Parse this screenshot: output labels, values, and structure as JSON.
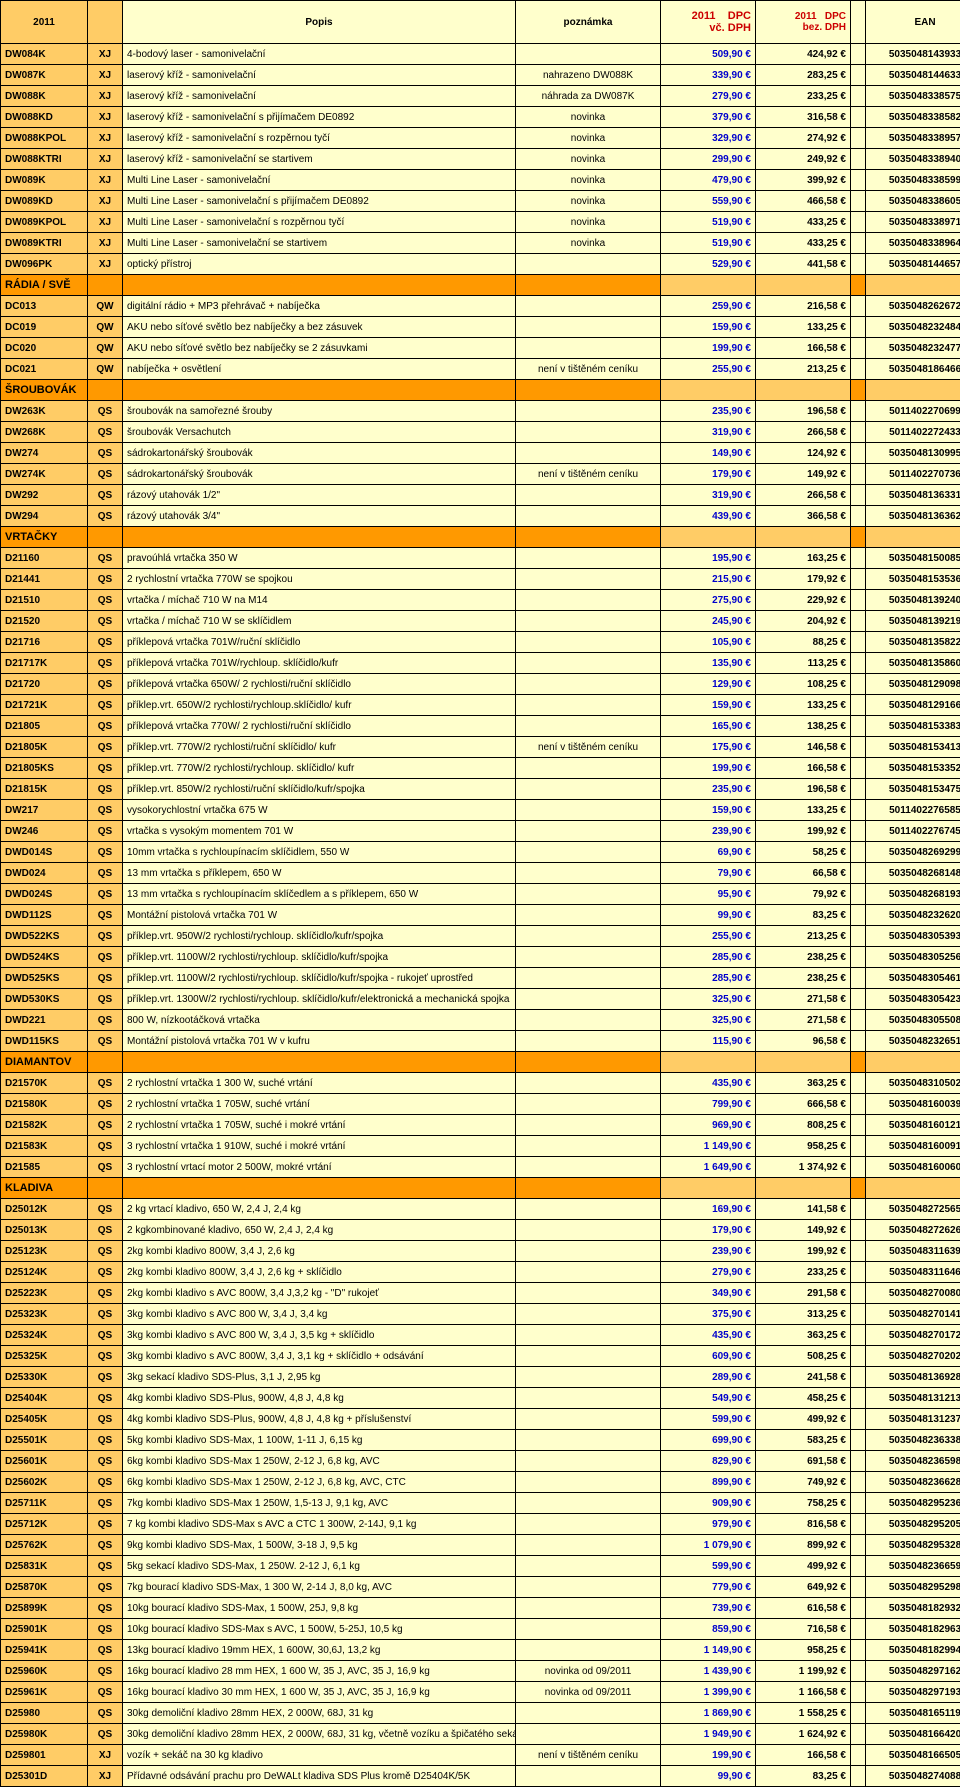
{
  "headers": [
    "2011",
    "",
    "Popis",
    "poznámka",
    "2011 DPC vč. DPH",
    "2011 DPC bez. DPH",
    "",
    "EAN"
  ],
  "col_classes": [
    "c0",
    "c1",
    "c2",
    "c3",
    "c4",
    "c5",
    "c6",
    "c7"
  ],
  "th_classes": [
    "",
    "",
    "",
    "",
    "p1",
    "p2",
    "",
    ""
  ],
  "rows": [
    [
      "DW084K",
      "XJ",
      "4-bodový laser - samonivelační",
      "",
      "509,90 €",
      "424,92 €",
      "",
      "5035048143933"
    ],
    [
      "DW087K",
      "XJ",
      "laserový kříž - samonivelační",
      "nahrazeno DW088K",
      "339,90 €",
      "283,25 €",
      "",
      "5035048144633"
    ],
    [
      "DW088K",
      "XJ",
      "laserový kříž - samonivelační",
      "náhrada za DW087K",
      "279,90 €",
      "233,25 €",
      "",
      "5035048338575"
    ],
    [
      "DW088KD",
      "XJ",
      "laserový kříž - samonivelační s přijímačem DE0892",
      "novinka",
      "379,90 €",
      "316,58 €",
      "",
      "5035048338582"
    ],
    [
      "DW088KPOL",
      "XJ",
      "laserový kříž - samonivelační s rozpěrnou tyčí",
      "novinka",
      "329,90 €",
      "274,92 €",
      "",
      "5035048338957"
    ],
    [
      "DW088KTRI",
      "XJ",
      "laserový kříž - samonivelační se startivem",
      "novinka",
      "299,90 €",
      "249,92 €",
      "",
      "5035048338940"
    ],
    [
      "DW089K",
      "XJ",
      "Multi Line Laser - samonivelační",
      "novinka",
      "479,90 €",
      "399,92 €",
      "",
      "5035048338599"
    ],
    [
      "DW089KD",
      "XJ",
      "Multi Line Laser - samonivelační s přijímačem DE0892",
      "novinka",
      "559,90 €",
      "466,58 €",
      "",
      "5035048338605"
    ],
    [
      "DW089KPOL",
      "XJ",
      "Multi Line Laser - samonivelační s rozpěrnou tyčí",
      "novinka",
      "519,90 €",
      "433,25 €",
      "",
      "5035048338971"
    ],
    [
      "DW089KTRI",
      "XJ",
      "Multi Line Laser - samonivelační se startivem",
      "novinka",
      "519,90 €",
      "433,25 €",
      "",
      "5035048338964"
    ],
    [
      "DW096PK",
      "XJ",
      "optický přístroj",
      "",
      "529,90 €",
      "441,58 €",
      "",
      "5035048144657"
    ],
    {
      "section": "RÁDIA / SVĚ"
    },
    [
      "DC013",
      "QW",
      "digitální rádio + MP3 přehrávač + nabíječka",
      "",
      "259,90 €",
      "216,58 €",
      "",
      "5035048262672"
    ],
    [
      "DC019",
      "QW",
      "AKU nebo síťové světlo bez nabíječky a  bez zásuvek",
      "",
      "159,90 €",
      "133,25 €",
      "",
      "5035048232484"
    ],
    [
      "DC020",
      "QW",
      "AKU nebo síťové světlo bez nabíječky se 2 zásuvkami",
      "",
      "199,90 €",
      "166,58 €",
      "",
      "5035048232477"
    ],
    [
      "DC021",
      "QW",
      "nabíječka + osvětlení",
      "není v tištěném ceníku",
      "255,90 €",
      "213,25 €",
      "",
      "5035048186466"
    ],
    {
      "section": "ŠROUBOVÁK"
    },
    [
      "DW263K",
      "QS",
      "šroubovák na samořezné šrouby",
      "",
      "235,90 €",
      "196,58 €",
      "",
      "5011402270699"
    ],
    [
      "DW268K",
      "QS",
      "šroubovák Versachutch",
      "",
      "319,90 €",
      "266,58 €",
      "",
      "5011402272433"
    ],
    [
      "DW274",
      "QS",
      "sádrokartonářský šroubovák",
      "",
      "149,90 €",
      "124,92 €",
      "",
      "5035048130995"
    ],
    [
      "DW274K",
      "QS",
      "sádrokartonářský šroubovák",
      "není v tištěném ceníku",
      "179,90 €",
      "149,92 €",
      "",
      "5011402270736"
    ],
    [
      "DW292",
      "QS",
      "rázový utahovák 1/2\"",
      "",
      "319,90 €",
      "266,58 €",
      "",
      "5035048136331"
    ],
    [
      "DW294",
      "QS",
      "rázový utahovák 3/4\"",
      "",
      "439,90 €",
      "366,58 €",
      "",
      "5035048136362"
    ],
    {
      "section": "VRTAČKY"
    },
    [
      "D21160",
      "QS",
      "pravoúhlá vrtačka 350 W",
      "",
      "195,90 €",
      "163,25 €",
      "",
      "5035048150085"
    ],
    [
      "D21441",
      "QS",
      "2 rychlostní vrtačka 770W se spojkou",
      "",
      "215,90 €",
      "179,92 €",
      "",
      "5035048153536"
    ],
    [
      "D21510",
      "QS",
      "vrtačka / míchač 710 W na M14",
      "",
      "275,90 €",
      "229,92 €",
      "",
      "5035048139240"
    ],
    [
      "D21520",
      "QS",
      "vrtačka / míchač 710 W se sklíčidlem",
      "",
      "245,90 €",
      "204,92 €",
      "",
      "5035048139219"
    ],
    [
      "D21716",
      "QS",
      "příklepová vrtačka 701W/ruční sklíčidlo",
      "",
      "105,90 €",
      "88,25 €",
      "",
      "5035048135822"
    ],
    [
      "D21717K",
      "QS",
      "příklepová vrtačka 701W/rychloup. sklíčidlo/kufr",
      "",
      "135,90 €",
      "113,25 €",
      "",
      "5035048135860"
    ],
    [
      "D21720",
      "QS",
      "příklepová vrtačka 650W/ 2 rychlosti/ruční sklíčidlo",
      "",
      "129,90 €",
      "108,25 €",
      "",
      "5035048129098"
    ],
    [
      "D21721K",
      "QS",
      "příklep.vrt. 650W/2 rychlosti/rychloup.sklíčidlo/ kufr",
      "",
      "159,90 €",
      "133,25 €",
      "",
      "5035048129166"
    ],
    [
      "D21805",
      "QS",
      "příklepová vrtačka 770W/ 2 rychlosti/ruční sklíčidlo",
      "",
      "165,90 €",
      "138,25 €",
      "",
      "5035048153383"
    ],
    [
      "D21805K",
      "QS",
      "příklep.vrt. 770W/2 rychlosti/ruční sklíčidlo/ kufr",
      "není v tištěném ceníku",
      "175,90 €",
      "146,58 €",
      "",
      "5035048153413"
    ],
    [
      "D21805KS",
      "QS",
      "příklep.vrt. 770W/2 rychlosti/rychloup. sklíčidlo/ kufr",
      "",
      "199,90 €",
      "166,58 €",
      "",
      "5035048153352"
    ],
    [
      "D21815K",
      "QS",
      "příklep.vrt. 850W/2 rychlosti/ruční sklíčidlo/kufr/spojka",
      "",
      "235,90 €",
      "196,58 €",
      "",
      "5035048153475"
    ],
    [
      "DW217",
      "QS",
      "vysokorychlostní vrtačka 675 W",
      "",
      "159,90 €",
      "133,25 €",
      "",
      "5011402276585"
    ],
    [
      "DW246",
      "QS",
      "vrtačka s vysokým momentem 701 W",
      "",
      "239,90 €",
      "199,92 €",
      "",
      "5011402276745"
    ],
    [
      "DWD014S",
      "QS",
      "10mm vrtačka s rychloupínacím sklíčidlem, 550 W",
      "",
      "69,90 €",
      "58,25 €",
      "",
      "5035048269299"
    ],
    [
      "DWD024",
      "QS",
      "13 mm vrtačka s příklepem, 650 W",
      "",
      "79,90 €",
      "66,58 €",
      "",
      "5035048268148"
    ],
    [
      "DWD024S",
      "QS",
      "13 mm vrtačka s rychloupínacím sklíčedlem a s příklepem, 650 W",
      "",
      "95,90 €",
      "79,92 €",
      "",
      "5035048268193"
    ],
    [
      "DWD112S",
      "QS",
      "Montážní pistolová vrtačka 701 W",
      "",
      "99,90 €",
      "83,25 €",
      "",
      "5035048232620"
    ],
    [
      "DWD522KS",
      "QS",
      "příklep.vrt. 950W/2 rychlosti/rychloup. sklíčidlo/kufr/spojka",
      "",
      "255,90 €",
      "213,25 €",
      "",
      "5035048305393"
    ],
    [
      "DWD524KS",
      "QS",
      "příklep.vrt. 1100W/2 rychlosti/rychloup. sklíčidlo/kufr/spojka",
      "",
      "285,90 €",
      "238,25 €",
      "",
      "5035048305256"
    ],
    [
      "DWD525KS",
      "QS",
      "příklep.vrt. 1100W/2 rychlosti/rychloup. sklíčidlo/kufr/spojka - rukojeť uprostřed",
      "",
      "285,90 €",
      "238,25 €",
      "",
      "5035048305461"
    ],
    [
      "DWD530KS",
      "QS",
      "příklep.vrt. 1300W/2 rychlosti/rychloup. sklíčidlo/kufr/elektronická a mechanická spojka",
      "",
      "325,90 €",
      "271,58 €",
      "",
      "5035048305423"
    ],
    [
      "DWD221",
      "QS",
      "800 W, nízkootáčková vrtačka",
      "",
      "325,90 €",
      "271,58 €",
      "",
      "5035048305508"
    ],
    [
      "DWD115KS",
      "QS",
      "Montážní pistolová vrtačka 701 W v kufru",
      "",
      "115,90 €",
      "96,58 €",
      "",
      "5035048232651"
    ],
    {
      "section": "DIAMANTOV"
    },
    [
      "D21570K",
      "QS",
      "2 rychlostní vrtačka 1 300 W, suché vrtání",
      "",
      "435,90 €",
      "363,25 €",
      "",
      "5035048310502"
    ],
    [
      "D21580K",
      "QS",
      "2 rychlostní vrtačka 1 705W, suché vrtání",
      "",
      "799,90 €",
      "666,58 €",
      "",
      "5035048160039"
    ],
    [
      "D21582K",
      "QS",
      "2 rychlostní vrtačka 1 705W, suché i mokré vrtání",
      "",
      "969,90 €",
      "808,25 €",
      "",
      "5035048160121"
    ],
    [
      "D21583K",
      "QS",
      "3 rychlostní vrtačka 1 910W, suché i mokré vrtání",
      "",
      "1 149,90 €",
      "958,25 €",
      "",
      "5035048160091"
    ],
    [
      "D21585",
      "QS",
      "3 rychlostní vrtací motor 2 500W, mokré vrtání",
      "",
      "1 649,90 €",
      "1 374,92 €",
      "",
      "5035048160060"
    ],
    {
      "section": "KLADIVA"
    },
    [
      "D25012K",
      "QS",
      "2 kg vrtací kladivo, 650 W, 2,4 J, 2,4 kg",
      "",
      "169,90 €",
      "141,58 €",
      "",
      "5035048272565"
    ],
    [
      "D25013K",
      "QS",
      "2 kgkombinované kladivo, 650 W, 2,4 J, 2,4 kg",
      "",
      "179,90 €",
      "149,92 €",
      "",
      "5035048272626"
    ],
    [
      "D25123K",
      "QS",
      "2kg kombi kladivo 800W, 3,4 J, 2,6 kg",
      "",
      "239,90 €",
      "199,92 €",
      "",
      "5035048311639"
    ],
    [
      "D25124K",
      "QS",
      "2kg kombi kladivo 800W, 3,4 J, 2,6 kg + sklíčidlo",
      "",
      "279,90 €",
      "233,25 €",
      "",
      "5035048311646"
    ],
    [
      "D25223K",
      "QS",
      "2kg kombi kladivo s AVC 800W, 3,4 J,3,2 kg - \"D\" rukojeť",
      "",
      "349,90 €",
      "291,58 €",
      "",
      "5035048270080"
    ],
    [
      "D25323K",
      "QS",
      "3kg kombi kladivo s AVC 800 W, 3,4 J, 3,4 kg",
      "",
      "375,90 €",
      "313,25 €",
      "",
      "5035048270141"
    ],
    [
      "D25324K",
      "QS",
      "3kg kombi kladivo s AVC 800 W, 3,4 J, 3,5 kg + sklíčidlo",
      "",
      "435,90 €",
      "363,25 €",
      "",
      "5035048270172"
    ],
    [
      "D25325K",
      "QS",
      "3kg kombi kladivo s AVC 800W, 3,4 J, 3,1 kg + sklíčidlo + odsávání",
      "",
      "609,90 €",
      "508,25 €",
      "",
      "5035048270202"
    ],
    [
      "D25330K",
      "QS",
      "3kg sekací kladivo SDS-Plus, 3,1 J, 2,95 kg",
      "",
      "289,90 €",
      "241,58 €",
      "",
      "5035048136928"
    ],
    [
      "D25404K",
      "QS",
      "4kg kombi kladivo SDS-Plus, 900W, 4,8 J, 4,8 kg",
      "",
      "549,90 €",
      "458,25 €",
      "",
      "5035048131213"
    ],
    [
      "D25405K",
      "QS",
      "4kg kombi kladivo SDS-Plus, 900W, 4,8 J, 4,8 kg + příslušenství",
      "",
      "599,90 €",
      "499,92 €",
      "",
      "5035048131237"
    ],
    [
      "D25501K",
      "QS",
      "5kg kombi kladivo SDS-Max, 1 100W, 1-11 J, 6,15 kg",
      "",
      "699,90 €",
      "583,25 €",
      "",
      "5035048236338"
    ],
    [
      "D25601K",
      "QS",
      "6kg kombi kladivo SDS-Max 1 250W, 2-12 J, 6,8 kg, AVC",
      "",
      "829,90 €",
      "691,58 €",
      "",
      "5035048236598"
    ],
    [
      "D25602K",
      "QS",
      "6kg kombi kladivo SDS-Max 1 250W, 2-12 J, 6,8 kg, AVC, CTC",
      "",
      "899,90 €",
      "749,92 €",
      "",
      "5035048236628"
    ],
    [
      "D25711K",
      "QS",
      "7kg kombi kladivo SDS-Max 1 250W, 1,5-13 J, 9,1 kg, AVC",
      "",
      "909,90 €",
      "758,25 €",
      "",
      "5035048295236"
    ],
    [
      "D25712K",
      "QS",
      "7 kg kombi kladivo SDS-Max s AVC a CTC 1 300W, 2-14J, 9,1 kg",
      "",
      "979,90 €",
      "816,58 €",
      "",
      "5035048295205"
    ],
    [
      "D25762K",
      "QS",
      "9kg kombi kladivo SDS-Max, 1 500W, 3-18 J, 9,5 kg",
      "",
      "1 079,90 €",
      "899,92 €",
      "",
      "5035048295328"
    ],
    [
      "D25831K",
      "QS",
      "5kg sekací kladivo SDS-Max, 1 250W. 2-12 J, 6,1 kg",
      "",
      "599,90 €",
      "499,92 €",
      "",
      "5035048236659"
    ],
    [
      "D25870K",
      "QS",
      "7kg bourací kladivo SDS-Max, 1 300 W, 2-14 J, 8,0 kg, AVC",
      "",
      "779,90 €",
      "649,92 €",
      "",
      "5035048295298"
    ],
    [
      "D25899K",
      "QS",
      "10kg bourací kladivo SDS-Max, 1 500W, 25J, 9,8 kg",
      "",
      "739,90 €",
      "616,58 €",
      "",
      "5035048182932"
    ],
    [
      "D25901K",
      "QS",
      "10kg bourací kladivo SDS-Max s AVC, 1 500W, 5-25J, 10,5 kg",
      "",
      "859,90 €",
      "716,58 €",
      "",
      "5035048182963"
    ],
    [
      "D25941K",
      "QS",
      "13kg bourací kladivo 19mm HEX, 1 600W, 30,6J, 13,2 kg",
      "",
      "1 149,90 €",
      "958,25 €",
      "",
      "5035048182994"
    ],
    [
      "D25960K",
      "QS",
      "16kg bourací kladivo 28 mm HEX, 1 600 W, 35 J, AVC, 35 J, 16,9 kg",
      "novinka od 09/2011",
      "1 439,90 €",
      "1 199,92 €",
      "",
      "5035048297162"
    ],
    [
      "D25961K",
      "QS",
      "16kg bourací kladivo 30 mm HEX, 1 600 W, 35 J, AVC, 35 J, 16,9 kg",
      "novinka od 09/2011",
      "1 399,90 €",
      "1 166,58 €",
      "",
      "5035048297193"
    ],
    [
      "D25980",
      "QS",
      "30kg demoliční kladivo 28mm HEX, 2 000W, 68J, 31 kg",
      "",
      "1 869,90 €",
      "1 558,25 €",
      "",
      "5035048165119"
    ],
    [
      "D25980K",
      "QS",
      "30kg demoliční kladivo 28mm HEX, 2 000W, 68J, 31 kg, včetně vozíku a špičatého sekáče",
      "",
      "1 949,90 €",
      "1 624,92 €",
      "",
      "5035048166420"
    ],
    [
      "D259801",
      "XJ",
      "vozík + sekáč na 30 kg kladivo",
      "není v tištěném ceníku",
      "199,90 €",
      "166,58 €",
      "",
      "5035048166505"
    ],
    [
      "D25301D",
      "XJ",
      "Přídavné odsávání prachu pro DeWALt kladiva SDS Plus kromě D25404K/5K",
      "",
      "99,90 €",
      "83,25 €",
      "",
      "5035048274088"
    ]
  ]
}
